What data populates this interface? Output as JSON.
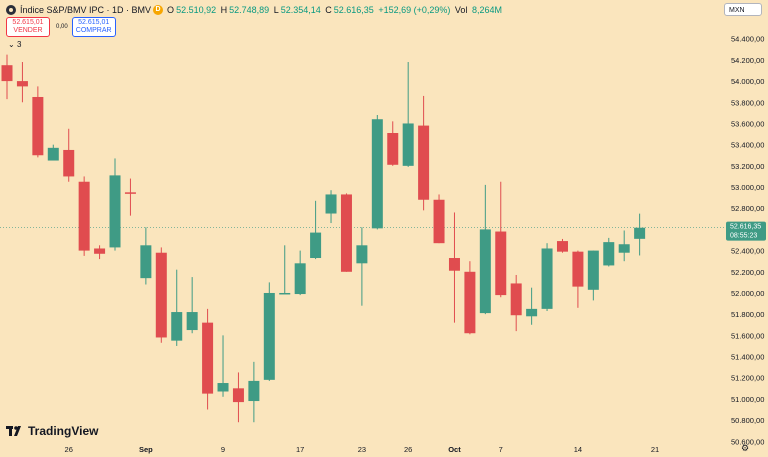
{
  "header": {
    "symbol": "Índice S&P/BMV IPC · 1D · BMV",
    "d_badge": "D",
    "o_label": "O",
    "o_value": "52.510,92",
    "h_label": "H",
    "h_value": "52.748,89",
    "l_label": "L",
    "l_value": "52.354,14",
    "c_label": "C",
    "c_value": "52.616,35",
    "change": "+152,69 (+0,29%)",
    "vol_label": "Vol",
    "vol_value": "8,264M"
  },
  "trade": {
    "sell_price": "52.615,01",
    "sell_label": "VENDER",
    "spread": "0,00",
    "buy_price": "52.615,01",
    "buy_label": "COMPRAR"
  },
  "indicators_toggle": "3",
  "currency": "MXN",
  "brand": "TradingView",
  "price_tag": {
    "price": "52.616,35",
    "countdown": "08:55:23"
  },
  "colors": {
    "up": "#3f9b85",
    "down": "#e04c4f",
    "background": "#fae5bd",
    "axis_text": "#131722"
  },
  "icons": [
    "index-logo-icon",
    "data-delayed-icon",
    "chevron-down-icon",
    "tradingview-logo-icon",
    "settings-gear-icon"
  ],
  "chart_data": {
    "type": "candlestick",
    "ylim": [
      50650,
      54520
    ],
    "y_ticks": [
      {
        "value": 54400,
        "label": "54.400,00"
      },
      {
        "value": 54200,
        "label": "54.200,00"
      },
      {
        "value": 54000,
        "label": "54.000,00"
      },
      {
        "value": 53800,
        "label": "53.800,00"
      },
      {
        "value": 53600,
        "label": "53.600,00"
      },
      {
        "value": 53400,
        "label": "53.400,00"
      },
      {
        "value": 53200,
        "label": "53.200,00"
      },
      {
        "value": 53000,
        "label": "53.000,00"
      },
      {
        "value": 52800,
        "label": "52.800,00"
      },
      {
        "value": 52400,
        "label": "52.400,00"
      },
      {
        "value": 52200,
        "label": "52.200,00"
      },
      {
        "value": 52000,
        "label": "52.000,00"
      },
      {
        "value": 51800,
        "label": "51.800,00"
      },
      {
        "value": 51600,
        "label": "51.600,00"
      },
      {
        "value": 51400,
        "label": "51.400,00"
      },
      {
        "value": 51200,
        "label": "51.200,00"
      },
      {
        "value": 51000,
        "label": "51.000,00"
      },
      {
        "value": 50800,
        "label": "50.800,00"
      },
      {
        "value": 50600,
        "label": "50.600,00"
      }
    ],
    "x_ticks": [
      {
        "index": 4,
        "label": "26"
      },
      {
        "index": 9,
        "label": "Sep"
      },
      {
        "index": 14,
        "label": "9"
      },
      {
        "index": 19,
        "label": "17"
      },
      {
        "index": 23,
        "label": "23"
      },
      {
        "index": 26,
        "label": "26"
      },
      {
        "index": 29,
        "label": "Oct"
      },
      {
        "index": 32,
        "label": "7"
      },
      {
        "index": 37,
        "label": "14"
      },
      {
        "index": 42,
        "label": "21"
      }
    ],
    "last_price": 52616.35,
    "candles": [
      {
        "o": 54150,
        "h": 54250,
        "l": 53830,
        "c": 54000
      },
      {
        "o": 54000,
        "h": 54180,
        "l": 53800,
        "c": 53950
      },
      {
        "o": 53850,
        "h": 53950,
        "l": 53280,
        "c": 53300
      },
      {
        "o": 53250,
        "h": 53400,
        "l": 53260,
        "c": 53370
      },
      {
        "o": 53350,
        "h": 53550,
        "l": 53050,
        "c": 53100
      },
      {
        "o": 53050,
        "h": 53100,
        "l": 52350,
        "c": 52400
      },
      {
        "o": 52420,
        "h": 52450,
        "l": 52320,
        "c": 52370
      },
      {
        "o": 52430,
        "h": 53270,
        "l": 52400,
        "c": 53110
      },
      {
        "o": 52950,
        "h": 53080,
        "l": 52730,
        "c": 52940
      },
      {
        "o": 52140,
        "h": 52620,
        "l": 52080,
        "c": 52450
      },
      {
        "o": 52380,
        "h": 52430,
        "l": 51530,
        "c": 51580
      },
      {
        "o": 51550,
        "h": 52220,
        "l": 51500,
        "c": 51820
      },
      {
        "o": 51650,
        "h": 52150,
        "l": 51620,
        "c": 51820
      },
      {
        "o": 51720,
        "h": 51850,
        "l": 50900,
        "c": 51050
      },
      {
        "o": 51070,
        "h": 51600,
        "l": 51020,
        "c": 51150
      },
      {
        "o": 51100,
        "h": 51250,
        "l": 50780,
        "c": 50970
      },
      {
        "o": 50980,
        "h": 51350,
        "l": 50780,
        "c": 51170
      },
      {
        "o": 51180,
        "h": 52100,
        "l": 51170,
        "c": 52000
      },
      {
        "o": 52000,
        "h": 52450,
        "l": 51990,
        "c": 52000
      },
      {
        "o": 51990,
        "h": 52400,
        "l": 51980,
        "c": 52280
      },
      {
        "o": 52330,
        "h": 52870,
        "l": 52320,
        "c": 52570
      },
      {
        "o": 52750,
        "h": 52970,
        "l": 52660,
        "c": 52930
      },
      {
        "o": 52930,
        "h": 52940,
        "l": 52200,
        "c": 52200
      },
      {
        "o": 52280,
        "h": 52620,
        "l": 51880,
        "c": 52450
      },
      {
        "o": 52610,
        "h": 53680,
        "l": 52600,
        "c": 53640
      },
      {
        "o": 53510,
        "h": 53620,
        "l": 53200,
        "c": 53210
      },
      {
        "o": 53200,
        "h": 54180,
        "l": 53190,
        "c": 53600
      },
      {
        "o": 53580,
        "h": 53860,
        "l": 52780,
        "c": 52880
      },
      {
        "o": 52880,
        "h": 52930,
        "l": 52470,
        "c": 52470
      },
      {
        "o": 52330,
        "h": 52760,
        "l": 51720,
        "c": 52210
      },
      {
        "o": 52200,
        "h": 52300,
        "l": 51610,
        "c": 51620
      },
      {
        "o": 51810,
        "h": 53020,
        "l": 51800,
        "c": 52600
      },
      {
        "o": 52580,
        "h": 53050,
        "l": 51960,
        "c": 51980
      },
      {
        "o": 52090,
        "h": 52170,
        "l": 51640,
        "c": 51790
      },
      {
        "o": 51780,
        "h": 52050,
        "l": 51700,
        "c": 51850
      },
      {
        "o": 51850,
        "h": 52470,
        "l": 51830,
        "c": 52420
      },
      {
        "o": 52490,
        "h": 52510,
        "l": 52380,
        "c": 52390
      },
      {
        "o": 52390,
        "h": 52400,
        "l": 51860,
        "c": 52060
      },
      {
        "o": 52030,
        "h": 52400,
        "l": 51930,
        "c": 52400
      },
      {
        "o": 52260,
        "h": 52520,
        "l": 52250,
        "c": 52480
      },
      {
        "o": 52380,
        "h": 52590,
        "l": 52300,
        "c": 52460
      },
      {
        "o": 52511,
        "h": 52749,
        "l": 52354,
        "c": 52616
      }
    ]
  }
}
